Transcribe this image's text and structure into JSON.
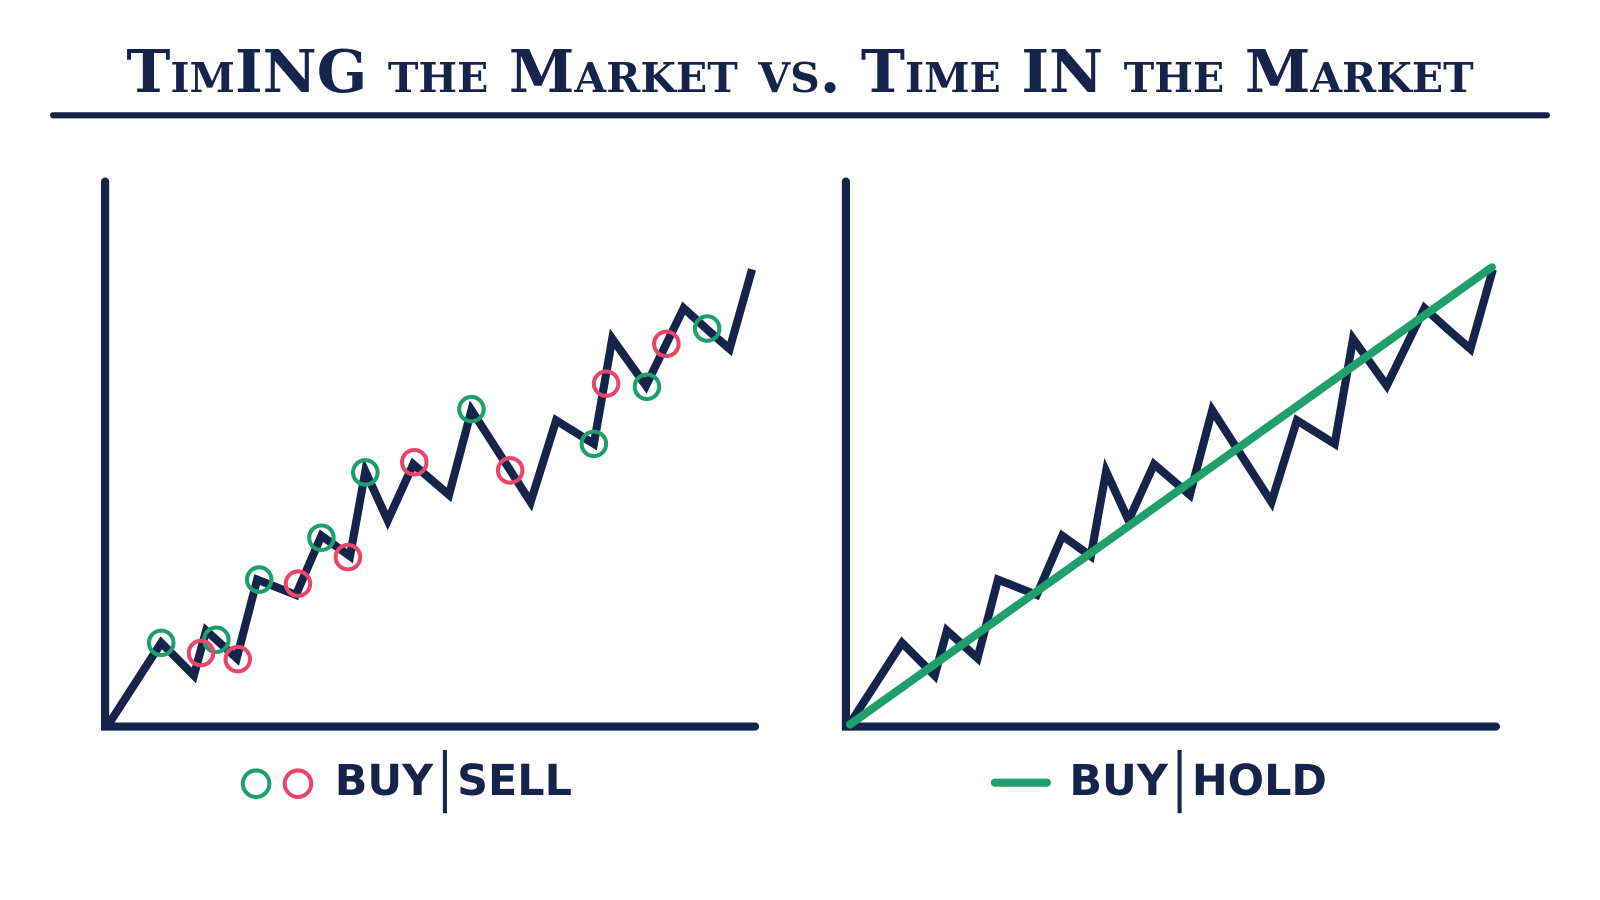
{
  "header": {
    "title": "TimING the Market vs. Time IN the Market"
  },
  "panels": [
    {
      "legend": [
        "BUY",
        "SELL"
      ]
    },
    {
      "legend": [
        "BUY",
        "HOLD"
      ]
    }
  ]
}
